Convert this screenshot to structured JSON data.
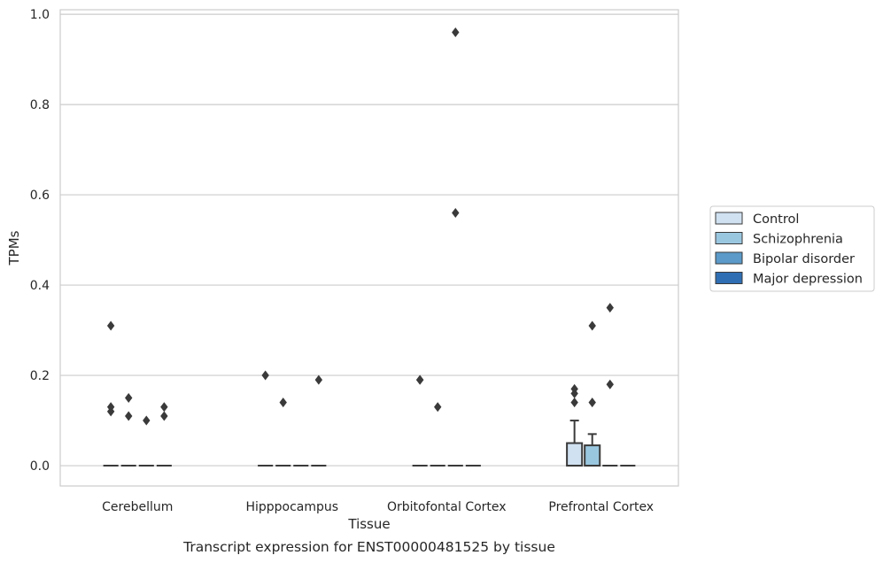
{
  "chart_data": {
    "type": "box",
    "caption": "Transcript expression for ENST00000481525 by tissue",
    "xlabel": "Tissue",
    "ylabel": "TPMs",
    "ylim": [
      -0.045,
      1.01
    ],
    "yticks": [
      "0.0",
      "0.2",
      "0.4",
      "0.6",
      "0.8",
      "1.0"
    ],
    "ytick_values": [
      0,
      0.2,
      0.4,
      0.6,
      0.8,
      1.0
    ],
    "grid": true,
    "legend_position": "right",
    "categories": [
      "Cerebellum",
      "Hipppocampus",
      "Orbitofontal Cortex",
      "Prefrontal Cortex"
    ],
    "series": [
      {
        "name": "Control",
        "color": "#d0e1f1",
        "boxes": [
          {
            "q1": 0,
            "median": 0,
            "q3": 0,
            "whisker_low": 0,
            "whisker_high": 0,
            "outliers": [
              0.12,
              0.13,
              0.31
            ]
          },
          {
            "q1": 0,
            "median": 0,
            "q3": 0,
            "whisker_low": 0,
            "whisker_high": 0,
            "outliers": [
              0.2
            ]
          },
          {
            "q1": 0,
            "median": 0,
            "q3": 0,
            "whisker_low": 0,
            "whisker_high": 0,
            "outliers": [
              0.19,
              0.19
            ]
          },
          {
            "q1": 0,
            "median": 0,
            "q3": 0.05,
            "whisker_low": 0,
            "whisker_high": 0.1,
            "outliers": [
              0.14,
              0.16,
              0.17
            ]
          }
        ]
      },
      {
        "name": "Schizophrenia",
        "color": "#9ac7e0",
        "boxes": [
          {
            "q1": 0,
            "median": 0,
            "q3": 0,
            "whisker_low": 0,
            "whisker_high": 0,
            "outliers": [
              0.11,
              0.15
            ]
          },
          {
            "q1": 0,
            "median": 0,
            "q3": 0,
            "whisker_low": 0,
            "whisker_high": 0,
            "outliers": [
              0.14
            ]
          },
          {
            "q1": 0,
            "median": 0,
            "q3": 0,
            "whisker_low": 0,
            "whisker_high": 0,
            "outliers": [
              0.13
            ]
          },
          {
            "q1": 0,
            "median": 0,
            "q3": 0.045,
            "whisker_low": 0,
            "whisker_high": 0.07,
            "outliers": [
              0.14,
              0.31
            ]
          }
        ]
      },
      {
        "name": "Bipolar disorder",
        "color": "#5b9ac9",
        "boxes": [
          {
            "q1": 0,
            "median": 0,
            "q3": 0,
            "whisker_low": 0,
            "whisker_high": 0,
            "outliers": [
              0.1
            ]
          },
          {
            "q1": 0,
            "median": 0,
            "q3": 0,
            "whisker_low": 0,
            "whisker_high": 0,
            "outliers": []
          },
          {
            "q1": 0,
            "median": 0,
            "q3": 0,
            "whisker_low": 0,
            "whisker_high": 0,
            "outliers": [
              0.56,
              0.96
            ]
          },
          {
            "q1": 0,
            "median": 0,
            "q3": 0,
            "whisker_low": 0,
            "whisker_high": 0,
            "outliers": [
              0.18,
              0.35
            ]
          }
        ]
      },
      {
        "name": "Major depression",
        "color": "#2f6eb3",
        "boxes": [
          {
            "q1": 0,
            "median": 0,
            "q3": 0,
            "whisker_low": 0,
            "whisker_high": 0,
            "outliers": [
              0.11,
              0.13
            ]
          },
          {
            "q1": 0,
            "median": 0,
            "q3": 0,
            "whisker_low": 0,
            "whisker_high": 0,
            "outliers": [
              0.19
            ]
          },
          {
            "q1": 0,
            "median": 0,
            "q3": 0,
            "whisker_low": 0,
            "whisker_high": 0,
            "outliers": []
          },
          {
            "q1": 0,
            "median": 0,
            "q3": 0,
            "whisker_low": 0,
            "whisker_high": 0,
            "outliers": []
          }
        ]
      }
    ],
    "colors": {
      "grid": "#cccccc",
      "frame": "#cccccc",
      "box_edge": "#3a3a3a",
      "outlier": "#3a3a3a"
    }
  }
}
